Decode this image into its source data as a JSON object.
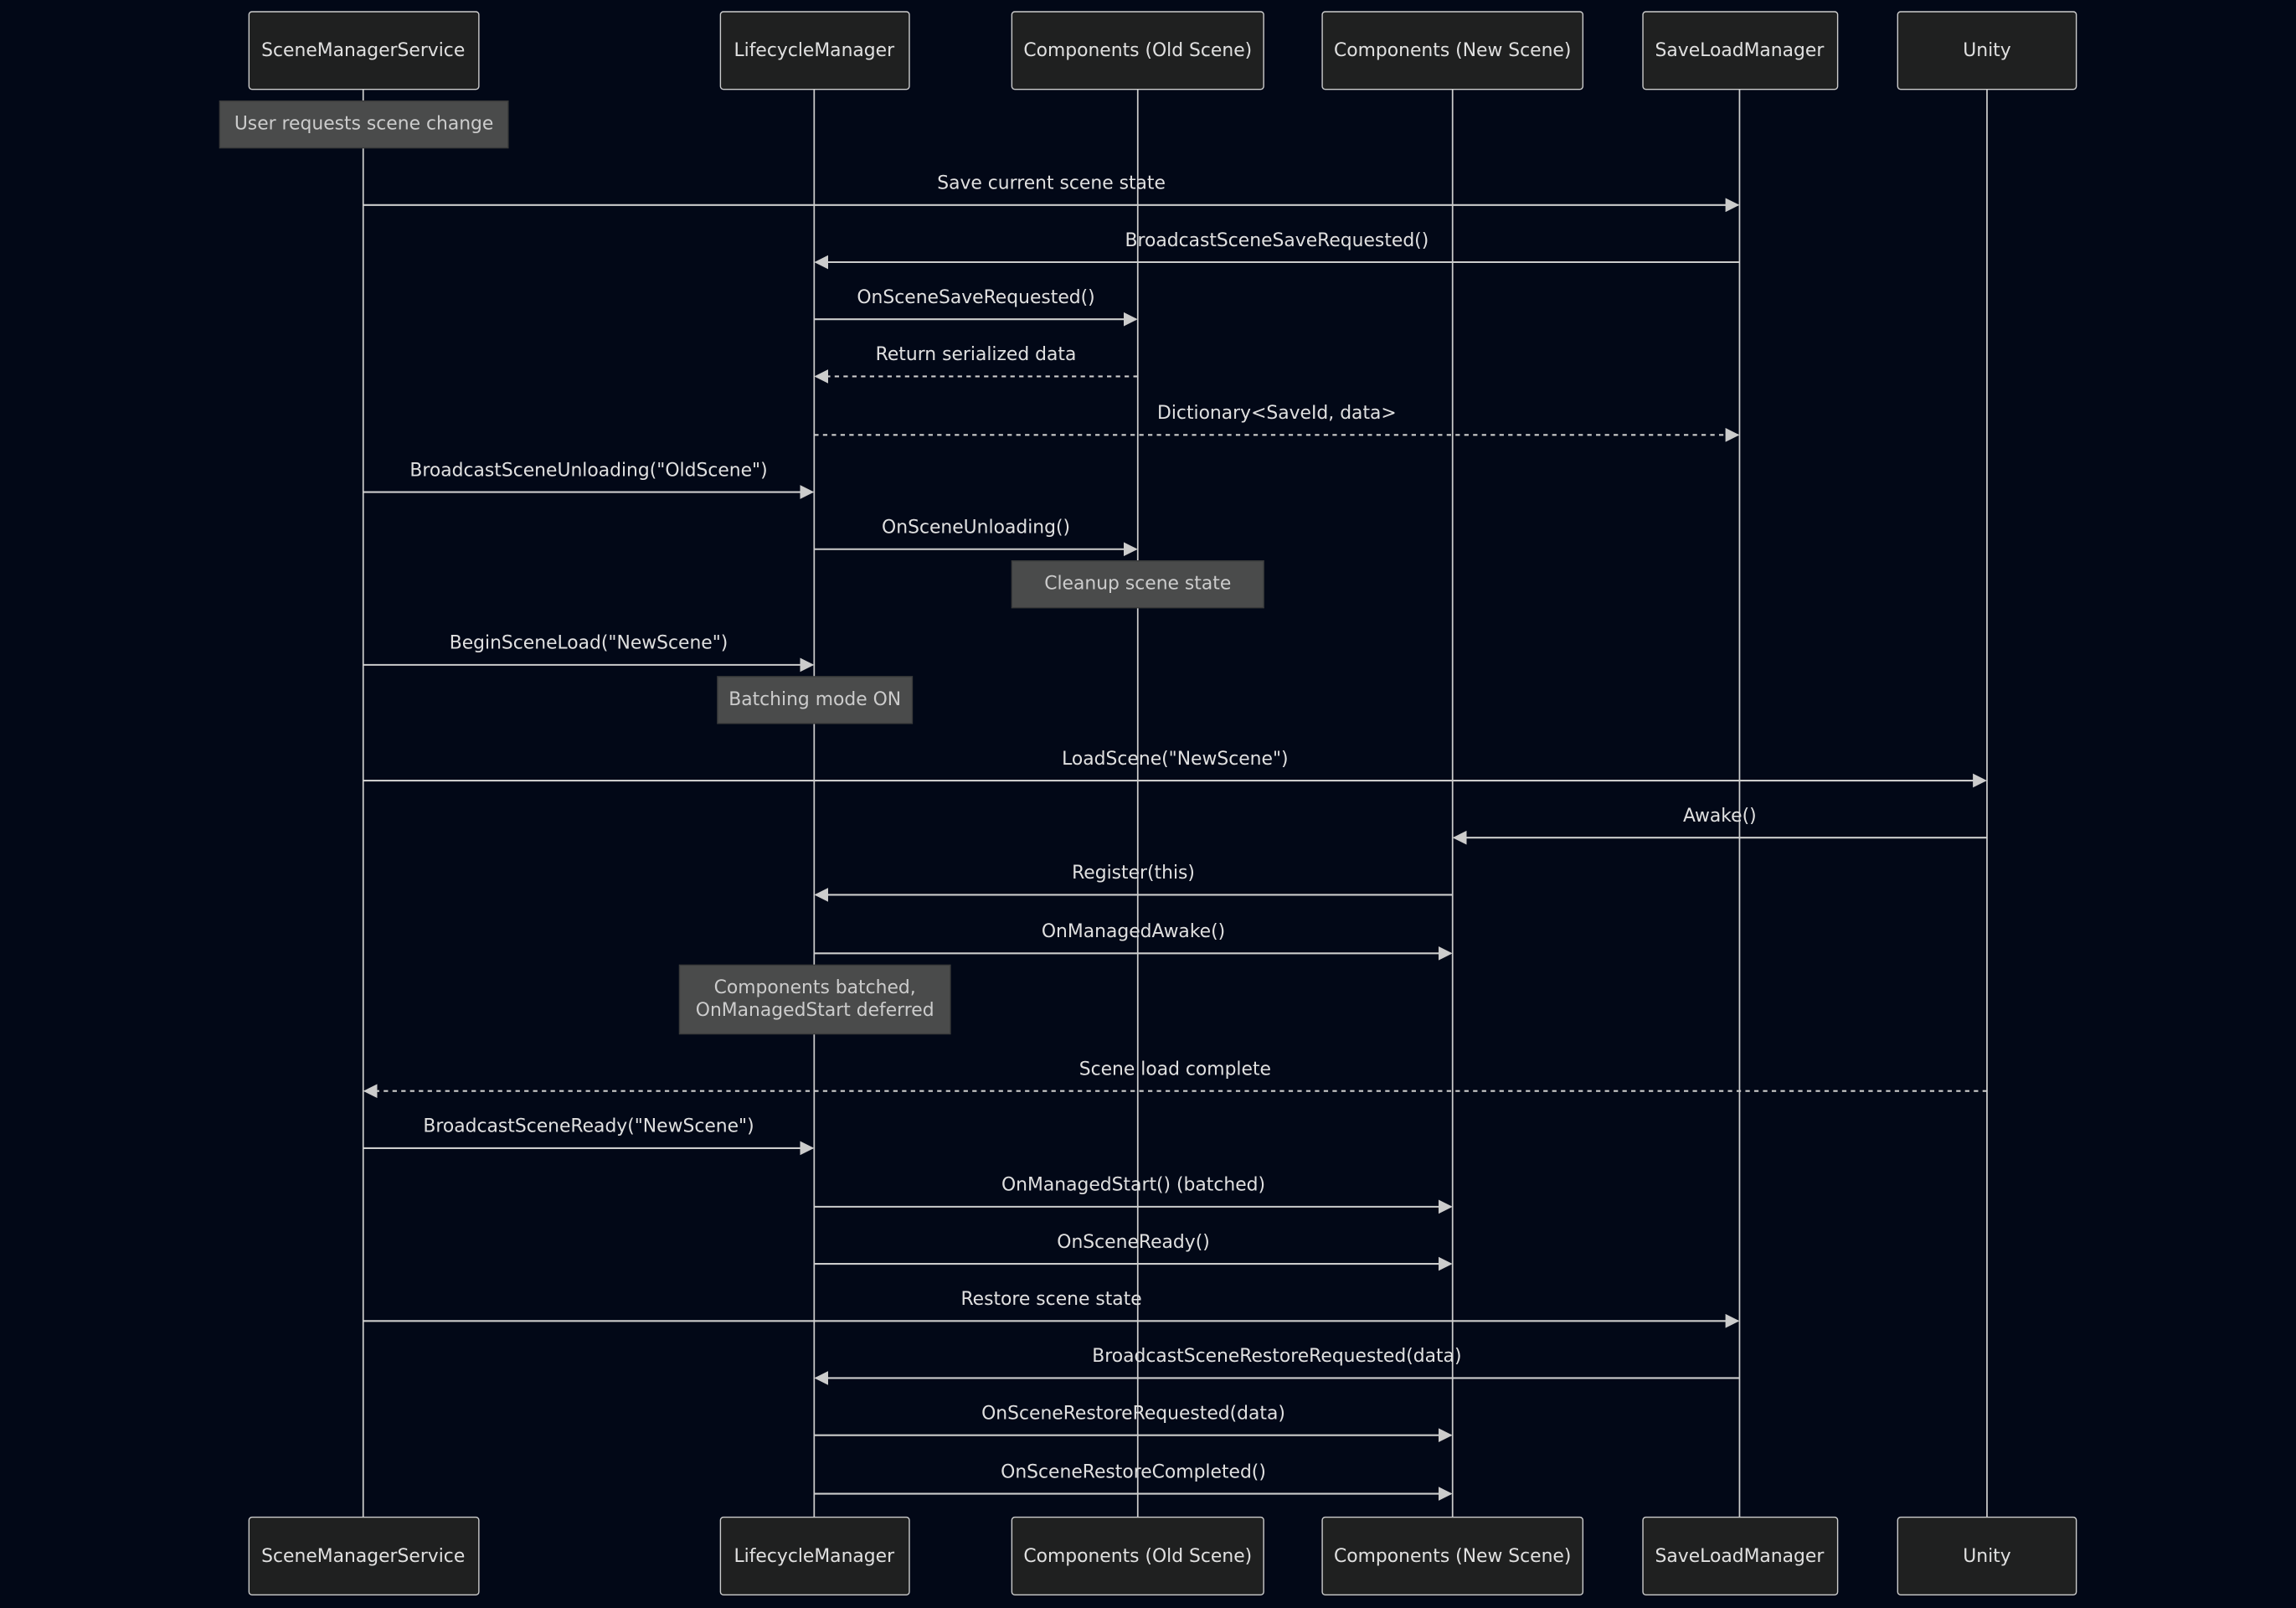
{
  "colors": {
    "background": "#020817",
    "actor_fill": "#1f2020",
    "line": "#cccccc",
    "note_fill": "#4a4b4b",
    "text": "#e0e0e0"
  },
  "actors": [
    {
      "id": "sms",
      "label": "SceneManagerService"
    },
    {
      "id": "lm",
      "label": "LifecycleManager"
    },
    {
      "id": "old",
      "label": "Components (Old Scene)"
    },
    {
      "id": "new",
      "label": "Components (New Scene)"
    },
    {
      "id": "slm",
      "label": "SaveLoadManager"
    },
    {
      "id": "unity",
      "label": "Unity"
    }
  ],
  "steps": [
    {
      "type": "note",
      "over": "sms",
      "lines": [
        "User requests scene change"
      ]
    },
    {
      "type": "msg",
      "from": "sms",
      "to": "slm",
      "label": "Save current scene state",
      "dashed": false
    },
    {
      "type": "msg",
      "from": "slm",
      "to": "lm",
      "label": "BroadcastSceneSaveRequested()",
      "dashed": false
    },
    {
      "type": "msg",
      "from": "lm",
      "to": "old",
      "label": "OnSceneSaveRequested()",
      "dashed": false
    },
    {
      "type": "msg",
      "from": "old",
      "to": "lm",
      "label": "Return serialized data",
      "dashed": true
    },
    {
      "type": "msg",
      "from": "lm",
      "to": "slm",
      "label": "Dictionary<SaveId, data>",
      "dashed": true
    },
    {
      "type": "msg",
      "from": "sms",
      "to": "lm",
      "label": "BroadcastSceneUnloading(\"OldScene\")",
      "dashed": false
    },
    {
      "type": "msg",
      "from": "lm",
      "to": "old",
      "label": "OnSceneUnloading()",
      "dashed": false
    },
    {
      "type": "note",
      "over": "old",
      "lines": [
        "Cleanup scene state"
      ]
    },
    {
      "type": "msg",
      "from": "sms",
      "to": "lm",
      "label": "BeginSceneLoad(\"NewScene\")",
      "dashed": false
    },
    {
      "type": "note",
      "over": "lm",
      "lines": [
        "Batching mode ON"
      ]
    },
    {
      "type": "msg",
      "from": "sms",
      "to": "unity",
      "label": "LoadScene(\"NewScene\")",
      "dashed": false
    },
    {
      "type": "msg",
      "from": "unity",
      "to": "new",
      "label": "Awake()",
      "dashed": false
    },
    {
      "type": "msg",
      "from": "new",
      "to": "lm",
      "label": "Register(this)",
      "dashed": false
    },
    {
      "type": "msg",
      "from": "lm",
      "to": "new",
      "label": "OnManagedAwake()",
      "dashed": false
    },
    {
      "type": "note",
      "over": "lm",
      "lines": [
        "Components batched,",
        "OnManagedStart deferred"
      ]
    },
    {
      "type": "msg",
      "from": "unity",
      "to": "sms",
      "label": "Scene load complete",
      "dashed": true
    },
    {
      "type": "msg",
      "from": "sms",
      "to": "lm",
      "label": "BroadcastSceneReady(\"NewScene\")",
      "dashed": false
    },
    {
      "type": "msg",
      "from": "lm",
      "to": "new",
      "label": "OnManagedStart() (batched)",
      "dashed": false
    },
    {
      "type": "msg",
      "from": "lm",
      "to": "new",
      "label": "OnSceneReady()",
      "dashed": false
    },
    {
      "type": "msg",
      "from": "sms",
      "to": "slm",
      "label": "Restore scene state",
      "dashed": false
    },
    {
      "type": "msg",
      "from": "slm",
      "to": "lm",
      "label": "BroadcastSceneRestoreRequested(data)",
      "dashed": false
    },
    {
      "type": "msg",
      "from": "lm",
      "to": "new",
      "label": "OnSceneRestoreRequested(data)",
      "dashed": false
    },
    {
      "type": "msg",
      "from": "lm",
      "to": "new",
      "label": "OnSceneRestoreCompleted()",
      "dashed": false
    }
  ]
}
